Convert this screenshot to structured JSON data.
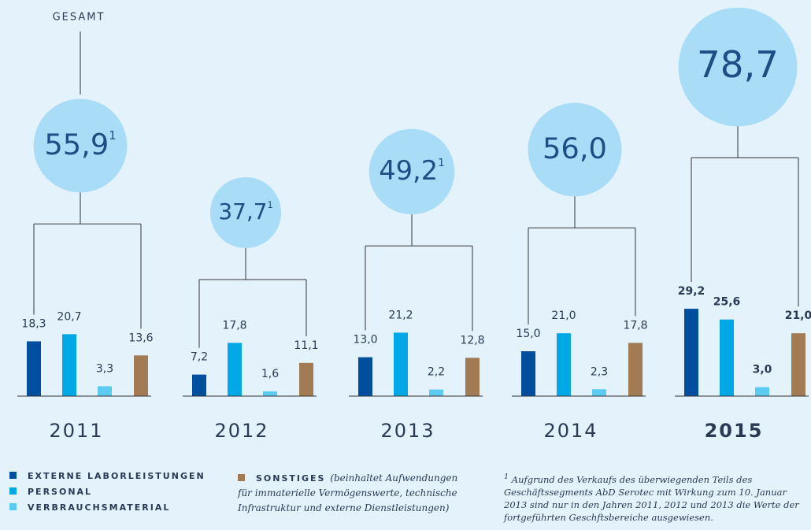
{
  "chart_data": {
    "type": "bar",
    "total_label": "GESAMT",
    "categories": [
      "2011",
      "2012",
      "2013",
      "2014",
      "2015"
    ],
    "totals": [
      55.9,
      37.7,
      49.2,
      56.0,
      78.7
    ],
    "total_labels": [
      "55,9",
      "37,7",
      "49,2",
      "56,0",
      "78,7"
    ],
    "total_notes": [
      "1",
      "1",
      "1",
      null,
      null
    ],
    "series": [
      {
        "name": "EXTERNE LABORLEISTUNGEN",
        "color": "#004f9f",
        "values": [
          18.3,
          7.2,
          13.0,
          15.0,
          29.2
        ],
        "value_labels": [
          "18,3",
          "7,2",
          "13,0",
          "15,0",
          "29,2"
        ]
      },
      {
        "name": "PERSONAL",
        "color": "#00a8e6",
        "values": [
          20.7,
          17.8,
          21.2,
          21.0,
          25.6
        ],
        "value_labels": [
          "20,7",
          "17,8",
          "21,2",
          "21,0",
          "25,6"
        ]
      },
      {
        "name": "VERBRAUCHSMATERIAL",
        "color": "#5ccbf2",
        "values": [
          3.3,
          1.6,
          2.2,
          2.3,
          3.0
        ],
        "value_labels": [
          "3,3",
          "1,6",
          "2,2",
          "2,3",
          "3,0"
        ]
      },
      {
        "name": "SONSTIGES",
        "description": "(beinhaltet Aufwendungen für immaterielle Vermögenswerte, technische Infrastruktur und externe Dienstleistungen)",
        "color": "#a27b55",
        "values": [
          13.6,
          11.1,
          12.8,
          17.8,
          21.0
        ],
        "value_labels": [
          "13,6",
          "11,1",
          "12,8",
          "17,8",
          "21,0"
        ]
      }
    ],
    "footnote_mark": "1",
    "footnote": "Aufgrund des Verkaufs des überwiegenden Teils des Geschäftssegments AbD Serotec mit Wirkung zum 10. Januar 2013 sind nur in den Jahren 2011, 2012 und 2013 die Werte der fortgeführten Geschftsbereiche ausgewiesen."
  }
}
